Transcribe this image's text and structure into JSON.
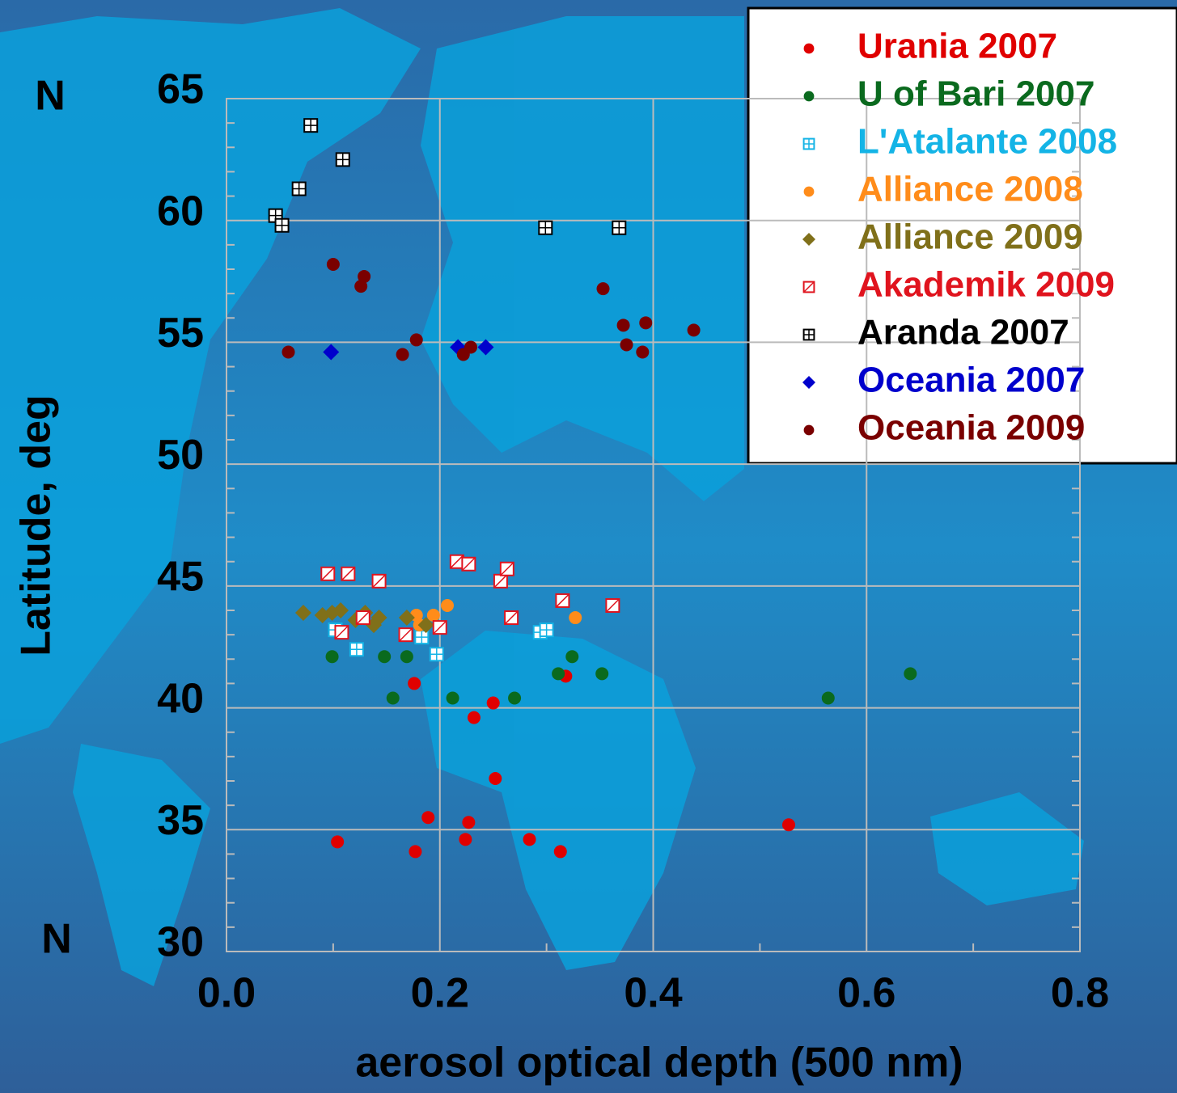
{
  "chart_data": {
    "type": "scatter",
    "xlabel": "aerosol optical depth (500 nm)",
    "ylabel": "Latitude, deg",
    "annotations": [
      "N",
      "N"
    ],
    "xlim": [
      0,
      0.8
    ],
    "ylim": [
      30,
      65
    ],
    "xticks": [
      {
        "value": 0,
        "label": "0.0"
      },
      0.2,
      0.4,
      0.6,
      0.8
    ],
    "xminorticks": [
      0.1,
      0.3,
      0.5,
      0.7
    ],
    "yticks": [
      30,
      35,
      40,
      45,
      50,
      55,
      60,
      65
    ],
    "yminorticks": [
      31,
      32,
      33,
      34,
      36,
      37,
      38,
      39,
      41,
      42,
      43,
      44,
      46,
      47,
      48,
      49,
      51,
      52,
      53,
      54,
      56,
      57,
      58,
      59,
      61,
      62,
      63,
      64
    ],
    "grid": true,
    "legend": "upper right",
    "series": [
      {
        "name": "Urania 2007",
        "color": "#e00000",
        "marker": "circle",
        "x": [
          0.104,
          0.176,
          0.177,
          0.189,
          0.224,
          0.227,
          0.232,
          0.25,
          0.252,
          0.284,
          0.313,
          0.318,
          0.527
        ],
        "y": [
          34.5,
          41.0,
          34.1,
          35.5,
          34.6,
          35.3,
          39.6,
          40.2,
          37.1,
          34.6,
          34.1,
          41.3,
          35.2
        ]
      },
      {
        "name": "U of Bari 2007",
        "color": "#0a6a1e",
        "marker": "circle",
        "x": [
          0.099,
          0.148,
          0.169,
          0.156,
          0.212,
          0.27,
          0.311,
          0.324,
          0.352,
          0.564,
          0.641
        ],
        "y": [
          42.1,
          42.1,
          42.1,
          40.4,
          40.4,
          40.4,
          41.4,
          42.1,
          41.4,
          40.4,
          41.4
        ]
      },
      {
        "name": "L'Atalante 2008",
        "color": "#14b4e6",
        "marker": "square-cross",
        "x": [
          0.102,
          0.122,
          0.183,
          0.197,
          0.294,
          0.3
        ],
        "y": [
          43.2,
          42.4,
          42.9,
          42.2,
          43.1,
          43.2
        ]
      },
      {
        "name": "Alliance 2008",
        "color": "#ff8c1a",
        "marker": "circle",
        "x": [
          0.178,
          0.181,
          0.194,
          0.207,
          0.327
        ],
        "y": [
          43.8,
          43.4,
          43.8,
          44.2,
          43.7
        ]
      },
      {
        "name": "Alliance 2009",
        "color": "#80701a",
        "marker": "diamond",
        "x": [
          0.072,
          0.09,
          0.099,
          0.107,
          0.121,
          0.13,
          0.138,
          0.143,
          0.169,
          0.187
        ],
        "y": [
          43.9,
          43.8,
          43.9,
          44.0,
          43.6,
          43.9,
          43.4,
          43.7,
          43.7,
          43.4
        ]
      },
      {
        "name": "Akademik 2009",
        "color": "#e0141e",
        "marker": "square-slash",
        "x": [
          0.095,
          0.114,
          0.143,
          0.216,
          0.227,
          0.257,
          0.263,
          0.108,
          0.128,
          0.168,
          0.2,
          0.267,
          0.315,
          0.362
        ],
        "y": [
          45.5,
          45.5,
          45.2,
          46.0,
          45.9,
          45.2,
          45.7,
          43.1,
          43.7,
          43.0,
          43.3,
          43.7,
          44.4,
          44.2
        ]
      },
      {
        "name": "Aranda 2007",
        "color": "#000000",
        "marker": "square-cross",
        "x": [
          0.079,
          0.109,
          0.068,
          0.046,
          0.052,
          0.299,
          0.368
        ],
        "y": [
          63.9,
          62.5,
          61.3,
          60.2,
          59.8,
          59.7,
          59.7
        ]
      },
      {
        "name": "Oceania 2007",
        "color": "#0000cc",
        "marker": "diamond",
        "x": [
          0.098,
          0.217,
          0.243
        ],
        "y": [
          54.6,
          54.8,
          54.8
        ]
      },
      {
        "name": "Oceania 2009",
        "color": "#7a0000",
        "marker": "circle",
        "x": [
          0.058,
          0.1,
          0.126,
          0.129,
          0.165,
          0.178,
          0.222,
          0.229,
          0.353,
          0.372,
          0.375,
          0.39,
          0.393,
          0.438
        ],
        "y": [
          54.6,
          58.2,
          57.3,
          57.7,
          54.5,
          55.1,
          54.5,
          54.8,
          57.2,
          55.7,
          54.9,
          54.6,
          55.8,
          55.5
        ]
      }
    ]
  }
}
